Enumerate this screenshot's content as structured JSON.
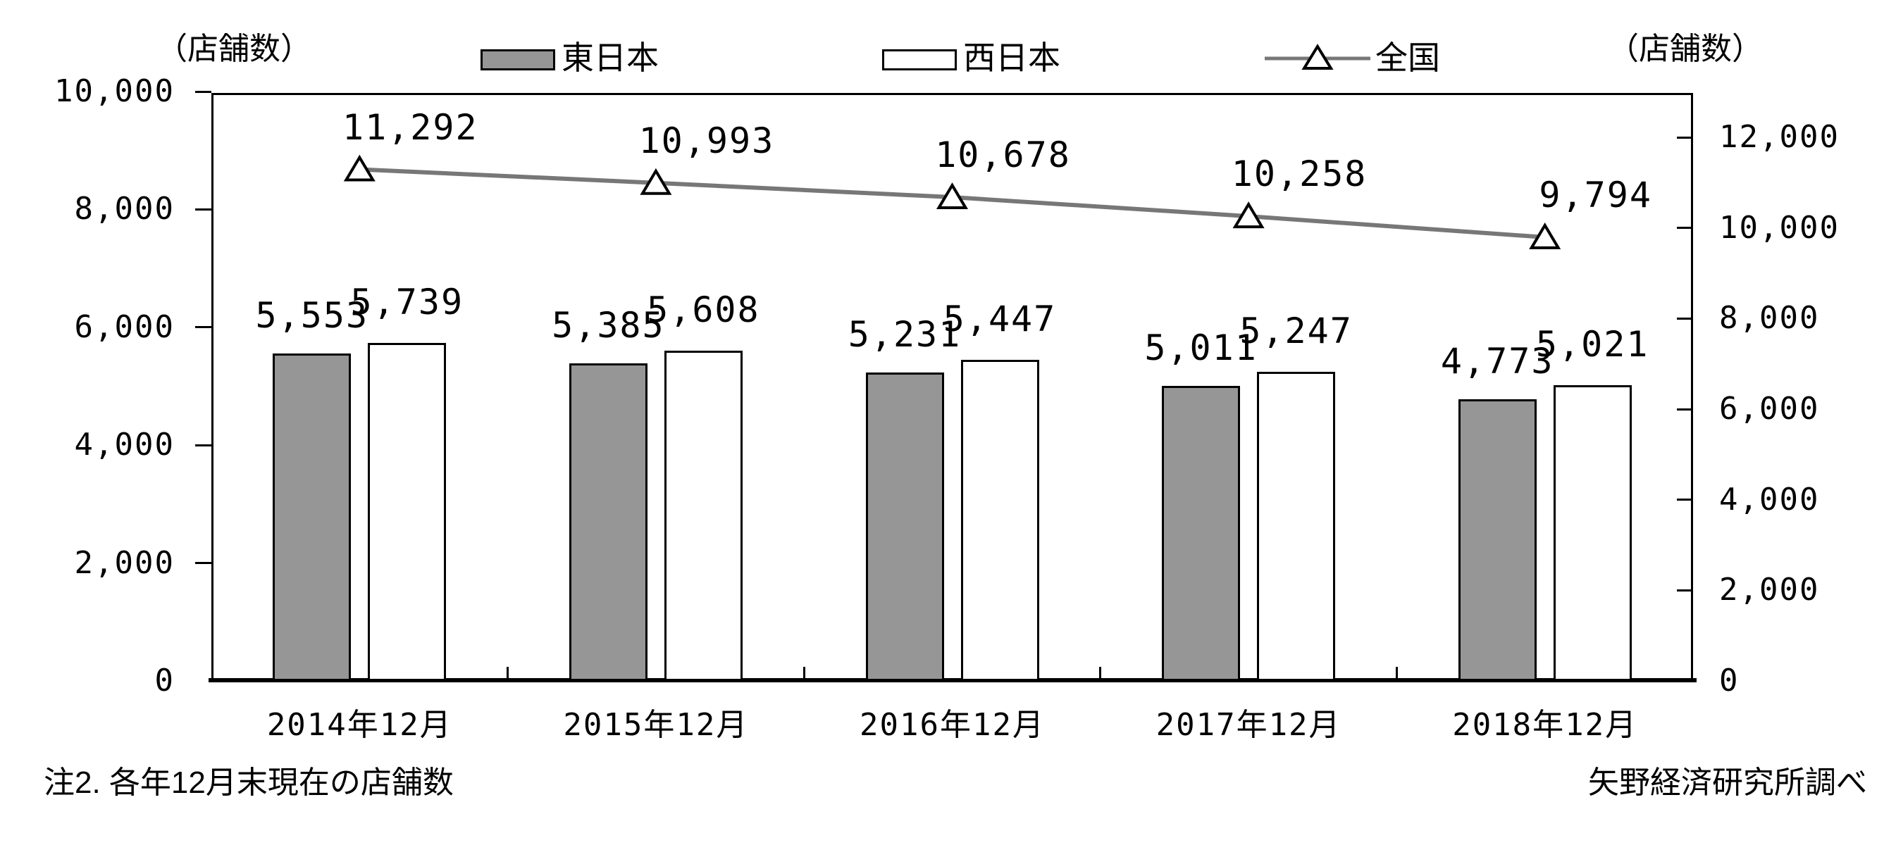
{
  "chart_data": {
    "type": "bar",
    "subtype": "grouped bars with overlaid line on secondary axis",
    "categories": [
      "2014年12月",
      "2015年12月",
      "2016年12月",
      "2017年12月",
      "2018年12月"
    ],
    "series": [
      {
        "name": "東日本",
        "type": "bar",
        "axis": "left",
        "style": "filled",
        "values": [
          5553,
          5385,
          5231,
          5011,
          4773
        ],
        "labels": [
          "5,553",
          "5,385",
          "5,231",
          "5,011",
          "4,773"
        ]
      },
      {
        "name": "西日本",
        "type": "bar",
        "axis": "left",
        "style": "outline",
        "values": [
          5739,
          5608,
          5447,
          5247,
          5021
        ],
        "labels": [
          "5,739",
          "5,608",
          "5,447",
          "5,247",
          "5,021"
        ]
      },
      {
        "name": "全国",
        "type": "line",
        "axis": "right",
        "marker": "triangle",
        "values": [
          11292,
          10993,
          10678,
          10258,
          9794
        ],
        "labels": [
          "11,292",
          "10,993",
          "10,678",
          "10,258",
          "9,794"
        ]
      }
    ],
    "left_axis": {
      "unit": "（店舗数）",
      "min": 0,
      "max": 10000,
      "ticks": [
        {
          "value": 10000,
          "label": "10,000"
        },
        {
          "value": 8000,
          "label": "8,000"
        },
        {
          "value": 6000,
          "label": "6,000"
        },
        {
          "value": 4000,
          "label": "4,000"
        },
        {
          "value": 2000,
          "label": "2,000"
        },
        {
          "value": 0,
          "label": "0"
        }
      ]
    },
    "right_axis": {
      "unit": "（店舗数）",
      "min": 0,
      "max": 12000,
      "ticks": [
        {
          "value": 12000,
          "label": "12,000"
        },
        {
          "value": 10000,
          "label": "10,000"
        },
        {
          "value": 8000,
          "label": "8,000"
        },
        {
          "value": 6000,
          "label": "6,000"
        },
        {
          "value": 4000,
          "label": "4,000"
        },
        {
          "value": 2000,
          "label": "2,000"
        },
        {
          "value": 0,
          "label": "0"
        }
      ]
    },
    "grid": false,
    "legend_position": "top"
  },
  "legend": {
    "items": [
      {
        "label": "東日本",
        "swatch": "filled-gray-bar"
      },
      {
        "label": "西日本",
        "swatch": "outlined-white-bar"
      },
      {
        "label": "全国",
        "swatch": "line-with-triangle-marker"
      }
    ]
  },
  "footnotes": {
    "left": "注2. 各年12月末現在の店舗数",
    "right": "矢野経済研究所調べ"
  },
  "colors": {
    "background": "#ffffff",
    "bar_fill_east": "#969696",
    "bar_fill_west": "#ffffff",
    "bar_border": "#000000",
    "line": "#777777",
    "marker_fill": "#ffffff",
    "marker_border": "#000000",
    "text": "#000000"
  }
}
